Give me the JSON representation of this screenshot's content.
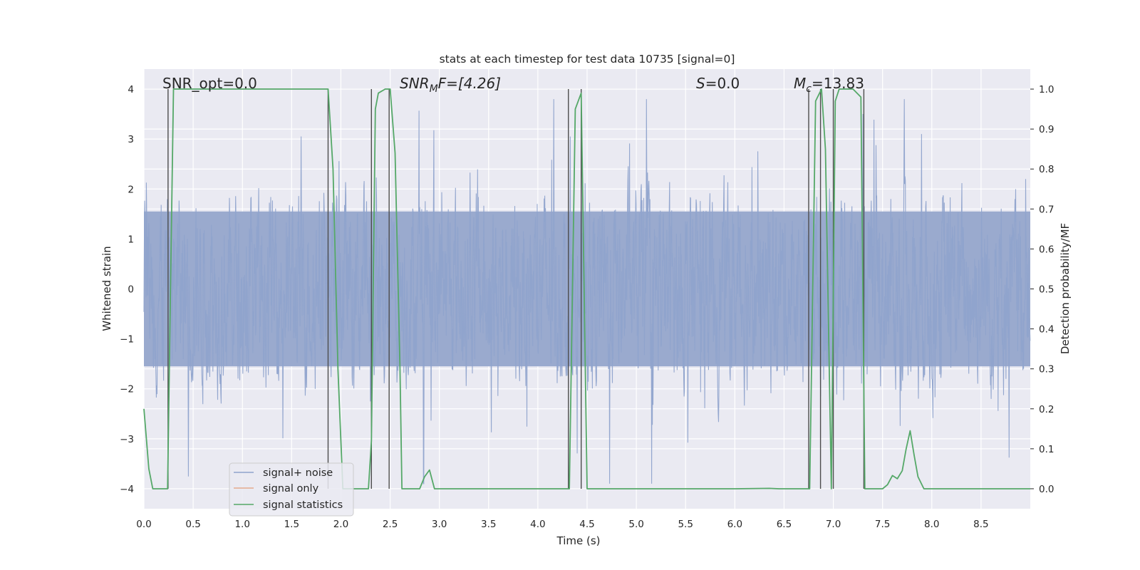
{
  "chart_data": {
    "type": "line",
    "title": "stats at each timestep for test data 10735 [signal=0]",
    "xlabel": "Time (s)",
    "ylabel_left": "Whitened strain",
    "ylabel_right": "Detection probability/MF",
    "xlim": [
      0.0,
      9.0
    ],
    "ylim_left": [
      -4.4,
      4.4
    ],
    "ylim_right": [
      -0.05,
      1.05
    ],
    "grid": true,
    "x_ticks": [
      "0.0",
      "0.5",
      "1.0",
      "1.5",
      "2.0",
      "2.5",
      "3.0",
      "3.5",
      "4.0",
      "4.5",
      "5.0",
      "5.5",
      "6.0",
      "6.5",
      "7.0",
      "7.5",
      "8.0",
      "8.5"
    ],
    "y_ticks_left": [
      "4",
      "3",
      "2",
      "1",
      "0",
      "−1",
      "−2",
      "−3",
      "−4"
    ],
    "y_ticks_right": [
      "1.0",
      "0.9",
      "0.8",
      "0.7",
      "0.6",
      "0.5",
      "0.4",
      "0.3",
      "0.2",
      "0.1",
      "0.0"
    ],
    "annotations": {
      "snr_opt": "SNR_opt=0.0",
      "snr_mf_main": "SNR",
      "snr_mf_sub": "M",
      "snr_mf_rest": "F=[4.26]",
      "s_var": "S",
      "s_rest": "=0.0",
      "mc_main": "M",
      "mc_sub": "c",
      "mc_rest": "=13.83"
    },
    "series": [
      {
        "name": "signal+ noise",
        "color": "#8fa3cc",
        "description": "whitened strain noise, roughly within ±2.5 with spikes to ±4"
      },
      {
        "name": "signal only",
        "color": "#e3a98c",
        "values": []
      },
      {
        "name": "signal statistics",
        "color": "#55a868",
        "x": [
          0.0,
          0.05,
          0.09,
          0.15,
          0.24,
          0.27,
          0.3,
          0.35,
          1.0,
          1.5,
          1.87,
          1.92,
          1.97,
          2.02,
          2.1,
          2.2,
          2.28,
          2.31,
          2.35,
          2.38,
          2.45,
          2.5,
          2.55,
          2.6,
          2.62,
          2.75,
          2.8,
          2.85,
          2.9,
          2.95,
          3.0,
          3.5,
          4.0,
          4.32,
          4.38,
          4.44,
          4.5,
          5.0,
          5.5,
          6.0,
          6.35,
          6.45,
          6.76,
          6.82,
          6.88,
          6.92,
          6.98,
          7.02,
          7.06,
          7.12,
          7.2,
          7.28,
          7.32,
          7.36,
          7.4,
          7.5,
          7.55,
          7.6,
          7.65,
          7.7,
          7.74,
          7.78,
          7.82,
          7.86,
          7.92,
          8.0,
          8.35,
          8.5,
          9.0
        ],
        "values": [
          0.2,
          0.05,
          0.0,
          0.0,
          0.0,
          0.5,
          1.0,
          1.0,
          1.0,
          1.0,
          1.0,
          0.8,
          0.3,
          0.0,
          0.0,
          0.0,
          0.0,
          0.12,
          0.95,
          0.99,
          1.0,
          1.0,
          0.84,
          0.3,
          0.0,
          0.0,
          0.0,
          0.03,
          0.047,
          0.0,
          0.0,
          0.0,
          0.0,
          0.0,
          0.95,
          0.99,
          0.0,
          0.0,
          0.0,
          0.0,
          0.001,
          0.0,
          0.0,
          0.97,
          1.0,
          0.85,
          0.0,
          0.97,
          1.0,
          1.0,
          1.0,
          0.98,
          0.0,
          0.0,
          0.0,
          0.0,
          0.01,
          0.033,
          0.025,
          0.045,
          0.1,
          0.145,
          0.085,
          0.03,
          0.0,
          0.0,
          0.0,
          0.0,
          0.0
        ]
      }
    ],
    "vertical_lines_x": [
      0.245,
      1.87,
      2.31,
      2.49,
      4.31,
      4.44,
      6.75,
      6.87,
      7.0,
      7.31
    ],
    "legend": {
      "placement": "lower-left",
      "entries": [
        "signal+ noise",
        "signal only",
        "signal statistics"
      ]
    }
  }
}
